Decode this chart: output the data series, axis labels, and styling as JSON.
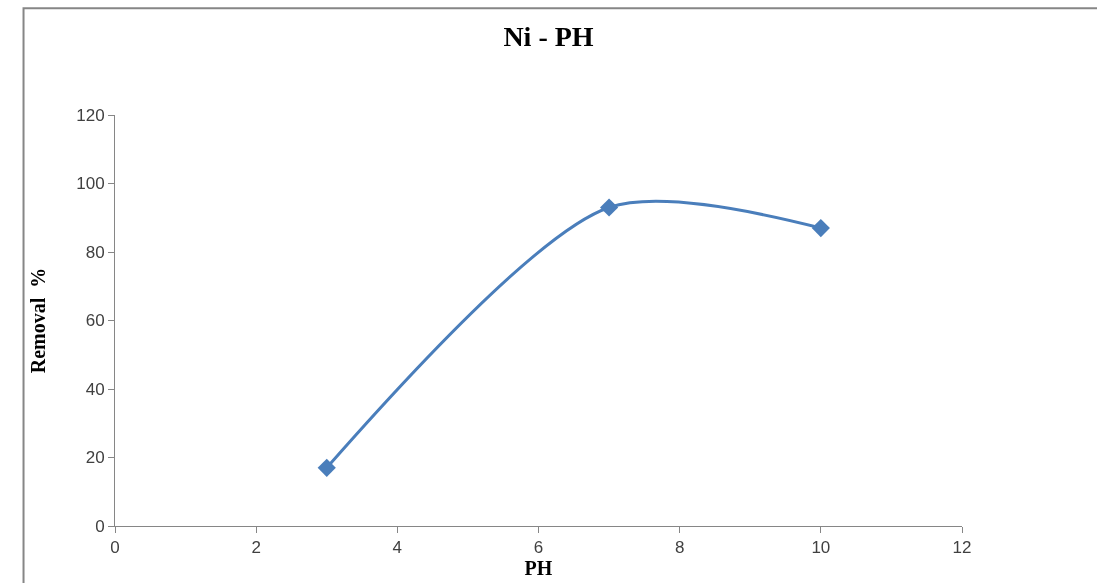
{
  "chart_data": {
    "type": "line",
    "title": "Ni - PH",
    "xlabel": "PH",
    "ylabel": "Removal  %",
    "x": [
      3,
      7,
      10
    ],
    "series": [
      {
        "color": "#4a7ebb",
        "values": [
          17,
          93,
          87
        ]
      }
    ],
    "xlim": [
      0,
      12
    ],
    "xticks": [
      0,
      2,
      4,
      6,
      8,
      10,
      12
    ],
    "ylim": [
      0,
      120
    ],
    "yticks": [
      0,
      20,
      40,
      60,
      80,
      100,
      120
    ],
    "marker": "diamond",
    "line_style": "solid"
  }
}
